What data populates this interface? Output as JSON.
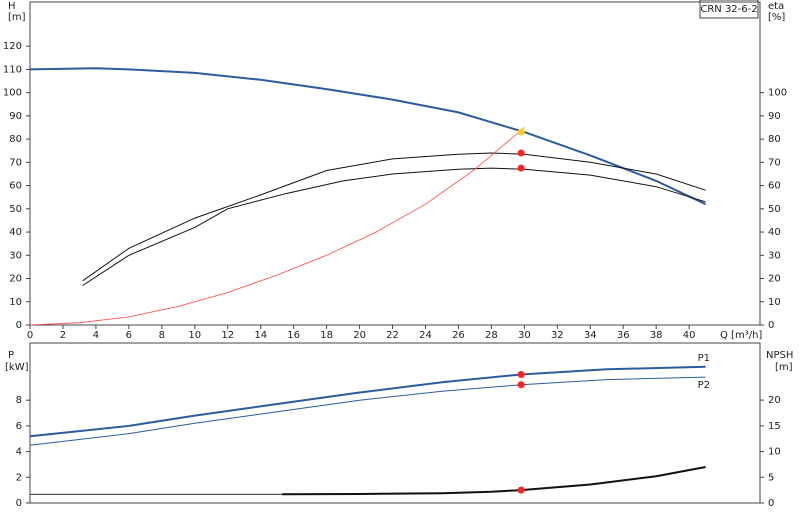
{
  "chart_data": [
    {
      "type": "line",
      "model": "CRN 32-6-2",
      "y_label": "H",
      "y_unit": "[m]",
      "y2_label": "eta",
      "y2_unit": "[%]",
      "x_label": "Q [m³/h]",
      "xlim": [
        0,
        44.3
      ],
      "xticks": [
        0,
        2,
        4,
        6,
        8,
        10,
        12,
        14,
        16,
        18,
        20,
        22,
        24,
        26,
        28,
        30,
        32,
        34,
        36,
        38,
        40
      ],
      "ylim": [
        0,
        139
      ],
      "yticks": [
        0,
        10,
        20,
        30,
        40,
        50,
        60,
        70,
        80,
        90,
        100,
        110,
        120
      ],
      "y2lim": [
        0,
        139
      ],
      "y2ticks": [
        0,
        10,
        20,
        30,
        40,
        50,
        60,
        70,
        80,
        90,
        100
      ],
      "series": [
        {
          "color": "#2b5c9e",
          "line_width": 2,
          "x": [
            0,
            4,
            6,
            10,
            14,
            18,
            22,
            26,
            30,
            34,
            38,
            41
          ],
          "values": [
            110,
            110.5,
            110,
            108.5,
            105.5,
            101.5,
            97,
            91.5,
            83,
            73,
            62,
            52
          ]
        },
        {
          "color": "#111111",
          "line_width": 1,
          "axis": "y2",
          "x": [
            3.2,
            6,
            10,
            14,
            18,
            22,
            26,
            28,
            30,
            34,
            38,
            41
          ],
          "values": [
            19,
            33,
            46,
            56,
            66.5,
            71.5,
            73.5,
            74,
            73.5,
            70,
            65,
            58
          ]
        },
        {
          "color": "#111111",
          "line_width": 1,
          "axis": "y2",
          "x": [
            3.2,
            6,
            10,
            12,
            15.5,
            19,
            22,
            26,
            28,
            30,
            34,
            38,
            41
          ],
          "values": [
            17,
            30,
            42,
            50,
            56.5,
            62,
            65,
            67,
            67.5,
            67,
            64.5,
            59.5,
            53
          ]
        },
        {
          "color": "#ff4444",
          "line_width": 0.8,
          "x": [
            0,
            3,
            6,
            9,
            12,
            15,
            18,
            21,
            24,
            27,
            30
          ],
          "values": [
            0,
            1,
            3.5,
            8,
            14,
            21.5,
            30,
            40,
            52,
            67,
            85
          ]
        }
      ],
      "points": [
        {
          "x": 29.8,
          "y": 83,
          "color": "#ffcc22"
        },
        {
          "x": 29.8,
          "y": 74,
          "color": "#ff2222",
          "axis": "y2"
        },
        {
          "x": 29.8,
          "y": 67.5,
          "color": "#ff2222",
          "axis": "y2"
        }
      ]
    },
    {
      "type": "line",
      "y_label": "P",
      "y_unit": "[kW]",
      "y2_label": "NPSH",
      "y2_unit": "[m]",
      "xlim": [
        0,
        44.3
      ],
      "ylim": [
        0,
        12.45
      ],
      "yticks": [
        0,
        2,
        4,
        6,
        8
      ],
      "y2lim": [
        0,
        31.1
      ],
      "y2ticks": [
        0,
        5,
        10,
        15,
        20
      ],
      "series": [
        {
          "name": "P1",
          "color": "#2b5c9e",
          "line_width": 2,
          "x": [
            0,
            6,
            10,
            15,
            20,
            25,
            29.8,
            35,
            41
          ],
          "values": [
            5.2,
            6,
            6.8,
            7.7,
            8.6,
            9.4,
            10,
            10.4,
            10.6
          ]
        },
        {
          "name": "P2",
          "color": "#2b5c9e",
          "line_width": 1,
          "x": [
            0,
            6,
            10,
            15,
            20,
            25,
            29.8,
            35,
            41
          ],
          "values": [
            4.5,
            5.4,
            6.2,
            7.1,
            8,
            8.7,
            9.2,
            9.6,
            9.8
          ]
        },
        {
          "color": "#111111",
          "line_width": 0.8,
          "axis": "y2",
          "x": [
            0,
            15.3
          ],
          "values": [
            1.7,
            1.7
          ]
        },
        {
          "color": "#111111",
          "line_width": 2,
          "axis": "y2",
          "x": [
            15.3,
            20,
            25,
            28,
            29.8,
            34,
            38,
            41
          ],
          "values": [
            1.7,
            1.75,
            1.9,
            2.2,
            2.5,
            3.6,
            5.2,
            7
          ]
        }
      ],
      "points": [
        {
          "x": 29.8,
          "y": 10,
          "color": "#ff2222"
        },
        {
          "x": 29.8,
          "y": 9.2,
          "color": "#ff2222"
        },
        {
          "x": 29.8,
          "y": 2.5,
          "color": "#ff2222",
          "axis": "y2"
        }
      ]
    }
  ]
}
